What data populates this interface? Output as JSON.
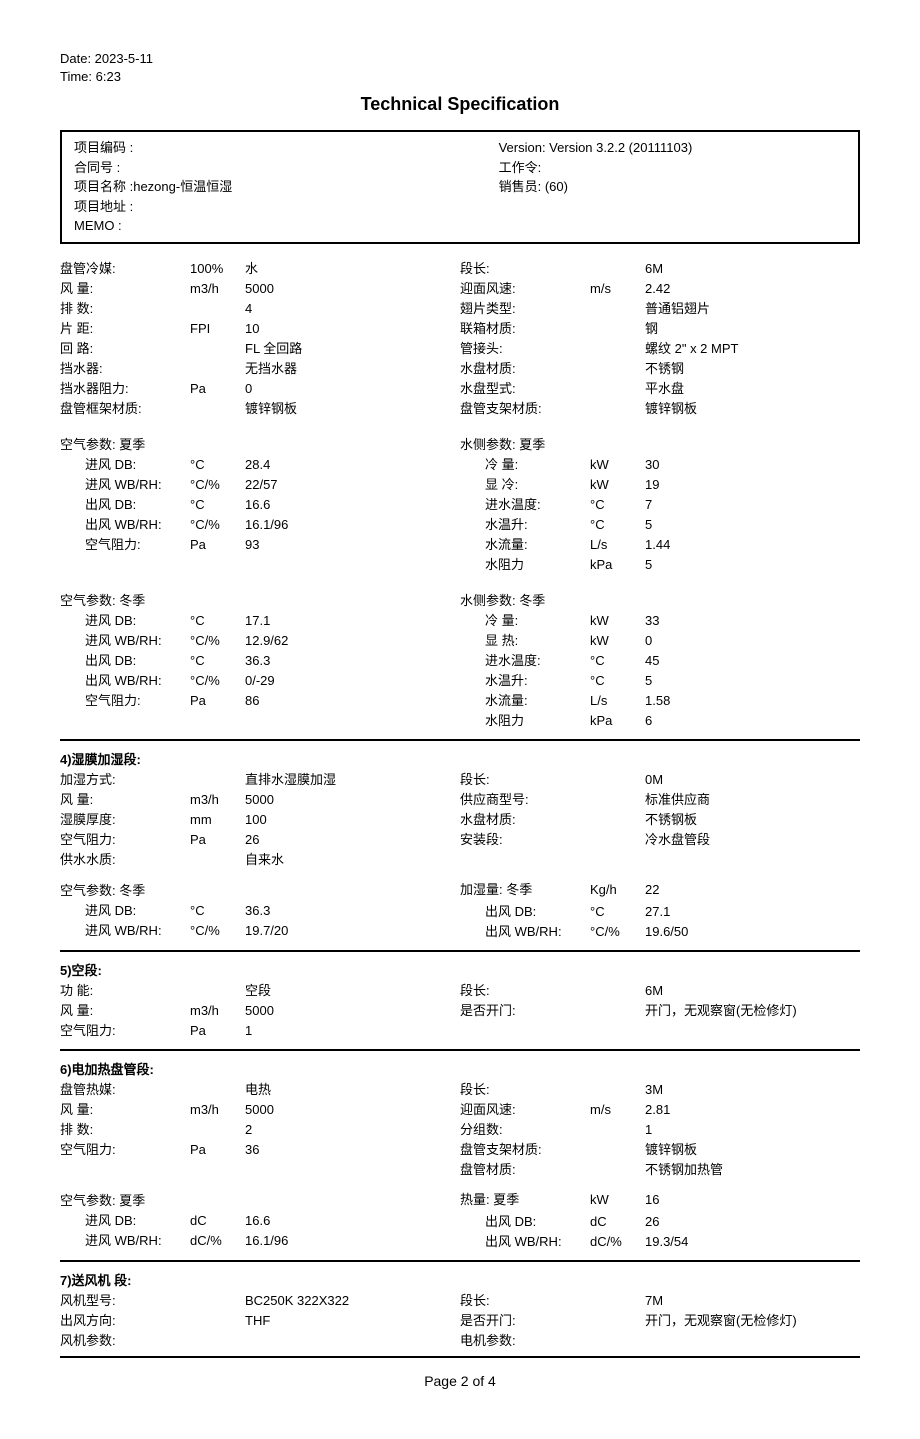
{
  "meta": {
    "date": "Date: 2023-5-11",
    "time": "Time: 6:23"
  },
  "title": "Technical Specification",
  "info": {
    "project_code_label": "项目编码 :",
    "contract_label": "合同号    :",
    "project_name_label": "项目名称 :hezong-恒温恒湿",
    "project_addr_label": "项目地址 :",
    "memo_label": "MEMO    :",
    "version": "Version: Version 3.2.2 (20111103)",
    "work_order": "工作令:",
    "sales": "销售员: (60)"
  },
  "coil": {
    "left": [
      {
        "label": "盘管冷媒:",
        "unit": "100%",
        "value": "水"
      },
      {
        "label": "风        量:",
        "unit": "m3/h",
        "value": "5000"
      },
      {
        "label": "排        数:",
        "unit": "",
        "value": "4"
      },
      {
        "label": "片        距:",
        "unit": "FPI",
        "value": "10"
      },
      {
        "label": "回        路:",
        "unit": "",
        "value": "FL 全回路"
      },
      {
        "label": "挡水器:",
        "unit": "",
        "value": "无挡水器"
      },
      {
        "label": "挡水器阻力:",
        "unit": "Pa",
        "value": "0"
      },
      {
        "label": "盘管框架材质:",
        "unit": "",
        "value": "镀锌钢板"
      }
    ],
    "right": [
      {
        "label": "段长:",
        "unit": "",
        "value": "6M"
      },
      {
        "label": "迎面风速:",
        "unit": "m/s",
        "value": "2.42"
      },
      {
        "label": "翅片类型:",
        "unit": "",
        "value": "普通铝翅片"
      },
      {
        "label": "联箱材质:",
        "unit": "",
        "value": "钢"
      },
      {
        "label": "管接头:",
        "unit": "",
        "value": "螺纹 2\" x 2  MPT"
      },
      {
        "label": "水盘材质:",
        "unit": "",
        "value": "不锈钢"
      },
      {
        "label": "水盘型式:",
        "unit": "",
        "value": "平水盘"
      },
      {
        "label": "盘管支架材质:",
        "unit": "",
        "value": "镀锌钢板"
      }
    ]
  },
  "air_summer": {
    "header": "空气参数: 夏季",
    "rows": [
      {
        "label": "进风 DB:",
        "unit": "°C",
        "value": "28.4"
      },
      {
        "label": "进风 WB/RH:",
        "unit": "°C/%",
        "value": "22/57"
      },
      {
        "label": "出风 DB:",
        "unit": "°C",
        "value": "16.6"
      },
      {
        "label": "出风 WB/RH:",
        "unit": "°C/%",
        "value": "16.1/96"
      },
      {
        "label": "空气阻力:",
        "unit": "Pa",
        "value": "93"
      }
    ]
  },
  "water_summer": {
    "header": "水侧参数: 夏季",
    "rows": [
      {
        "label": "冷    量:",
        "unit": "kW",
        "value": "30"
      },
      {
        "label": "显    冷:",
        "unit": "kW",
        "value": "19"
      },
      {
        "label": "进水温度:",
        "unit": "°C",
        "value": "7"
      },
      {
        "label": "水温升:",
        "unit": "°C",
        "value": "5"
      },
      {
        "label": "水流量:",
        "unit": "L/s",
        "value": "1.44"
      },
      {
        "label": "水阻力",
        "unit": "kPa",
        "value": "5"
      }
    ]
  },
  "air_winter": {
    "header": "空气参数: 冬季",
    "rows": [
      {
        "label": "进风 DB:",
        "unit": "°C",
        "value": "17.1"
      },
      {
        "label": "进风 WB/RH:",
        "unit": "°C/%",
        "value": "12.9/62"
      },
      {
        "label": "出风 DB:",
        "unit": "°C",
        "value": "36.3"
      },
      {
        "label": "出风 WB/RH:",
        "unit": "°C/%",
        "value": "0/-29"
      },
      {
        "label": "空气阻力:",
        "unit": "Pa",
        "value": "86"
      }
    ]
  },
  "water_winter": {
    "header": "水侧参数: 冬季",
    "rows": [
      {
        "label": "冷    量:",
        "unit": "kW",
        "value": "33"
      },
      {
        "label": "显    热:",
        "unit": "kW",
        "value": "0"
      },
      {
        "label": "进水温度:",
        "unit": "°C",
        "value": "45"
      },
      {
        "label": "水温升:",
        "unit": "°C",
        "value": "5"
      },
      {
        "label": "水流量:",
        "unit": "L/s",
        "value": "1.58"
      },
      {
        "label": "水阻力",
        "unit": "kPa",
        "value": "6"
      }
    ]
  },
  "s4": {
    "header": "4)湿膜加湿段:",
    "left": [
      {
        "label": "加湿方式:",
        "unit": "",
        "value": "直排水湿膜加湿"
      },
      {
        "label": "风        量:",
        "unit": "m3/h",
        "value": "5000"
      },
      {
        "label": "湿膜厚度:",
        "unit": "mm",
        "value": "100"
      },
      {
        "label": "空气阻力:",
        "unit": "Pa",
        "value": "26"
      },
      {
        "label": "供水水质:",
        "unit": "",
        "value": "自来水"
      }
    ],
    "right": [
      {
        "label": "段长:",
        "unit": "",
        "value": "0M"
      },
      {
        "label": "供应商型号:",
        "unit": "",
        "value": "标准供应商"
      },
      {
        "label": "水盘材质:",
        "unit": "",
        "value": "不锈钢板"
      },
      {
        "label": "安装段:",
        "unit": "",
        "value": "冷水盘管段"
      }
    ],
    "air_header": "空气参数: 冬季",
    "air": [
      {
        "label": "进风 DB:",
        "unit": "°C",
        "value": "36.3"
      },
      {
        "label": "进风 WB/RH:",
        "unit": "°C/%",
        "value": "19.7/20"
      }
    ],
    "humid_header": "加湿量: 冬季",
    "humid_unit": "Kg/h",
    "humid_value": "22",
    "humid": [
      {
        "label": "出风 DB:",
        "unit": "°C",
        "value": "27.1"
      },
      {
        "label": "出风 WB/RH:",
        "unit": "°C/%",
        "value": "19.6/50"
      }
    ]
  },
  "s5": {
    "header": "5)空段:",
    "left": [
      {
        "label": "功      能:",
        "unit": "",
        "value": "空段"
      },
      {
        "label": "风      量:",
        "unit": "m3/h",
        "value": "5000"
      },
      {
        "label": "空气阻力:",
        "unit": "Pa",
        "value": "1"
      }
    ],
    "right": [
      {
        "label": "段长:",
        "unit": "",
        "value": "6M"
      },
      {
        "label": "是否开门:",
        "unit": "",
        "value": "开门，无观察窗(无检修灯)"
      }
    ]
  },
  "s6": {
    "header": "6)电加热盘管段:",
    "left": [
      {
        "label": "盘管热媒:",
        "unit": "",
        "value": "电热"
      },
      {
        "label": "风        量:",
        "unit": "m3/h",
        "value": "5000"
      },
      {
        "label": "排        数:",
        "unit": "",
        "value": "2"
      },
      {
        "label": "空气阻力:",
        "unit": "Pa",
        "value": "36"
      }
    ],
    "right": [
      {
        "label": "段长:",
        "unit": "",
        "value": "3M"
      },
      {
        "label": "迎面风速:",
        "unit": "m/s",
        "value": "2.81"
      },
      {
        "label": "分组数:",
        "unit": "",
        "value": "1"
      },
      {
        "label": "盘管支架材质:",
        "unit": "",
        "value": "镀锌钢板"
      },
      {
        "label": "盘管材质:",
        "unit": "",
        "value": "不锈钢加热管"
      }
    ],
    "air_header": "空气参数: 夏季",
    "air": [
      {
        "label": "进风 DB:",
        "unit": "dC",
        "value": "16.6"
      },
      {
        "label": "进风 WB/RH:",
        "unit": "dC/%",
        "value": "16.1/96"
      }
    ],
    "heat_header": "热量: 夏季",
    "heat_unit": "kW",
    "heat_value": "16",
    "heat": [
      {
        "label": "出风 DB:",
        "unit": "dC",
        "value": "26"
      },
      {
        "label": "出风 WB/RH:",
        "unit": "dC/%",
        "value": "19.3/54"
      }
    ]
  },
  "s7": {
    "header": "7)送风机 段:",
    "left": [
      {
        "label": "风机型号:",
        "unit": "",
        "value": "BC250K     322X322"
      },
      {
        "label": "出风方向:",
        "unit": "",
        "value": "THF"
      },
      {
        "label": "风机参数:",
        "unit": "",
        "value": ""
      }
    ],
    "right": [
      {
        "label": "段长:",
        "unit": "",
        "value": "7M"
      },
      {
        "label": "是否开门:",
        "unit": "",
        "value": "开门，无观察窗(无检修灯)"
      },
      {
        "label": "电机参数:",
        "unit": "",
        "value": ""
      }
    ]
  },
  "footer": "Page 2 of 4"
}
